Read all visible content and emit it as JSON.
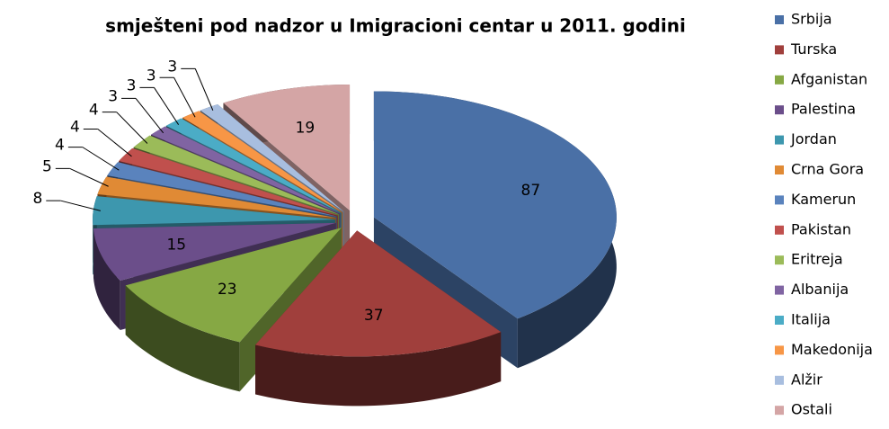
{
  "chart_data": {
    "type": "pie",
    "title": "smješteni pod nadzor u Imigracioni centar u 2011. godini",
    "categories": [
      "Srbija",
      "Turska",
      "Afganistan",
      "Palestina",
      "Jordan",
      "Crna Gora",
      "Kamerun",
      "Pakistan",
      "Eritreja",
      "Albanija",
      "Italija",
      "Makedonija",
      "Alžir",
      "Ostali"
    ],
    "values": [
      87,
      37,
      23,
      15,
      8,
      5,
      4,
      4,
      4,
      3,
      3,
      3,
      3,
      19
    ],
    "colors": [
      "#4a70a6",
      "#a03f3c",
      "#86a844",
      "#6b4e8a",
      "#3d97ae",
      "#e08a35",
      "#5a83bd",
      "#c0504d",
      "#9bbb59",
      "#8064a2",
      "#4bacc6",
      "#f79646",
      "#a8bedf",
      "#d4a5a5"
    ],
    "legend": "right"
  }
}
